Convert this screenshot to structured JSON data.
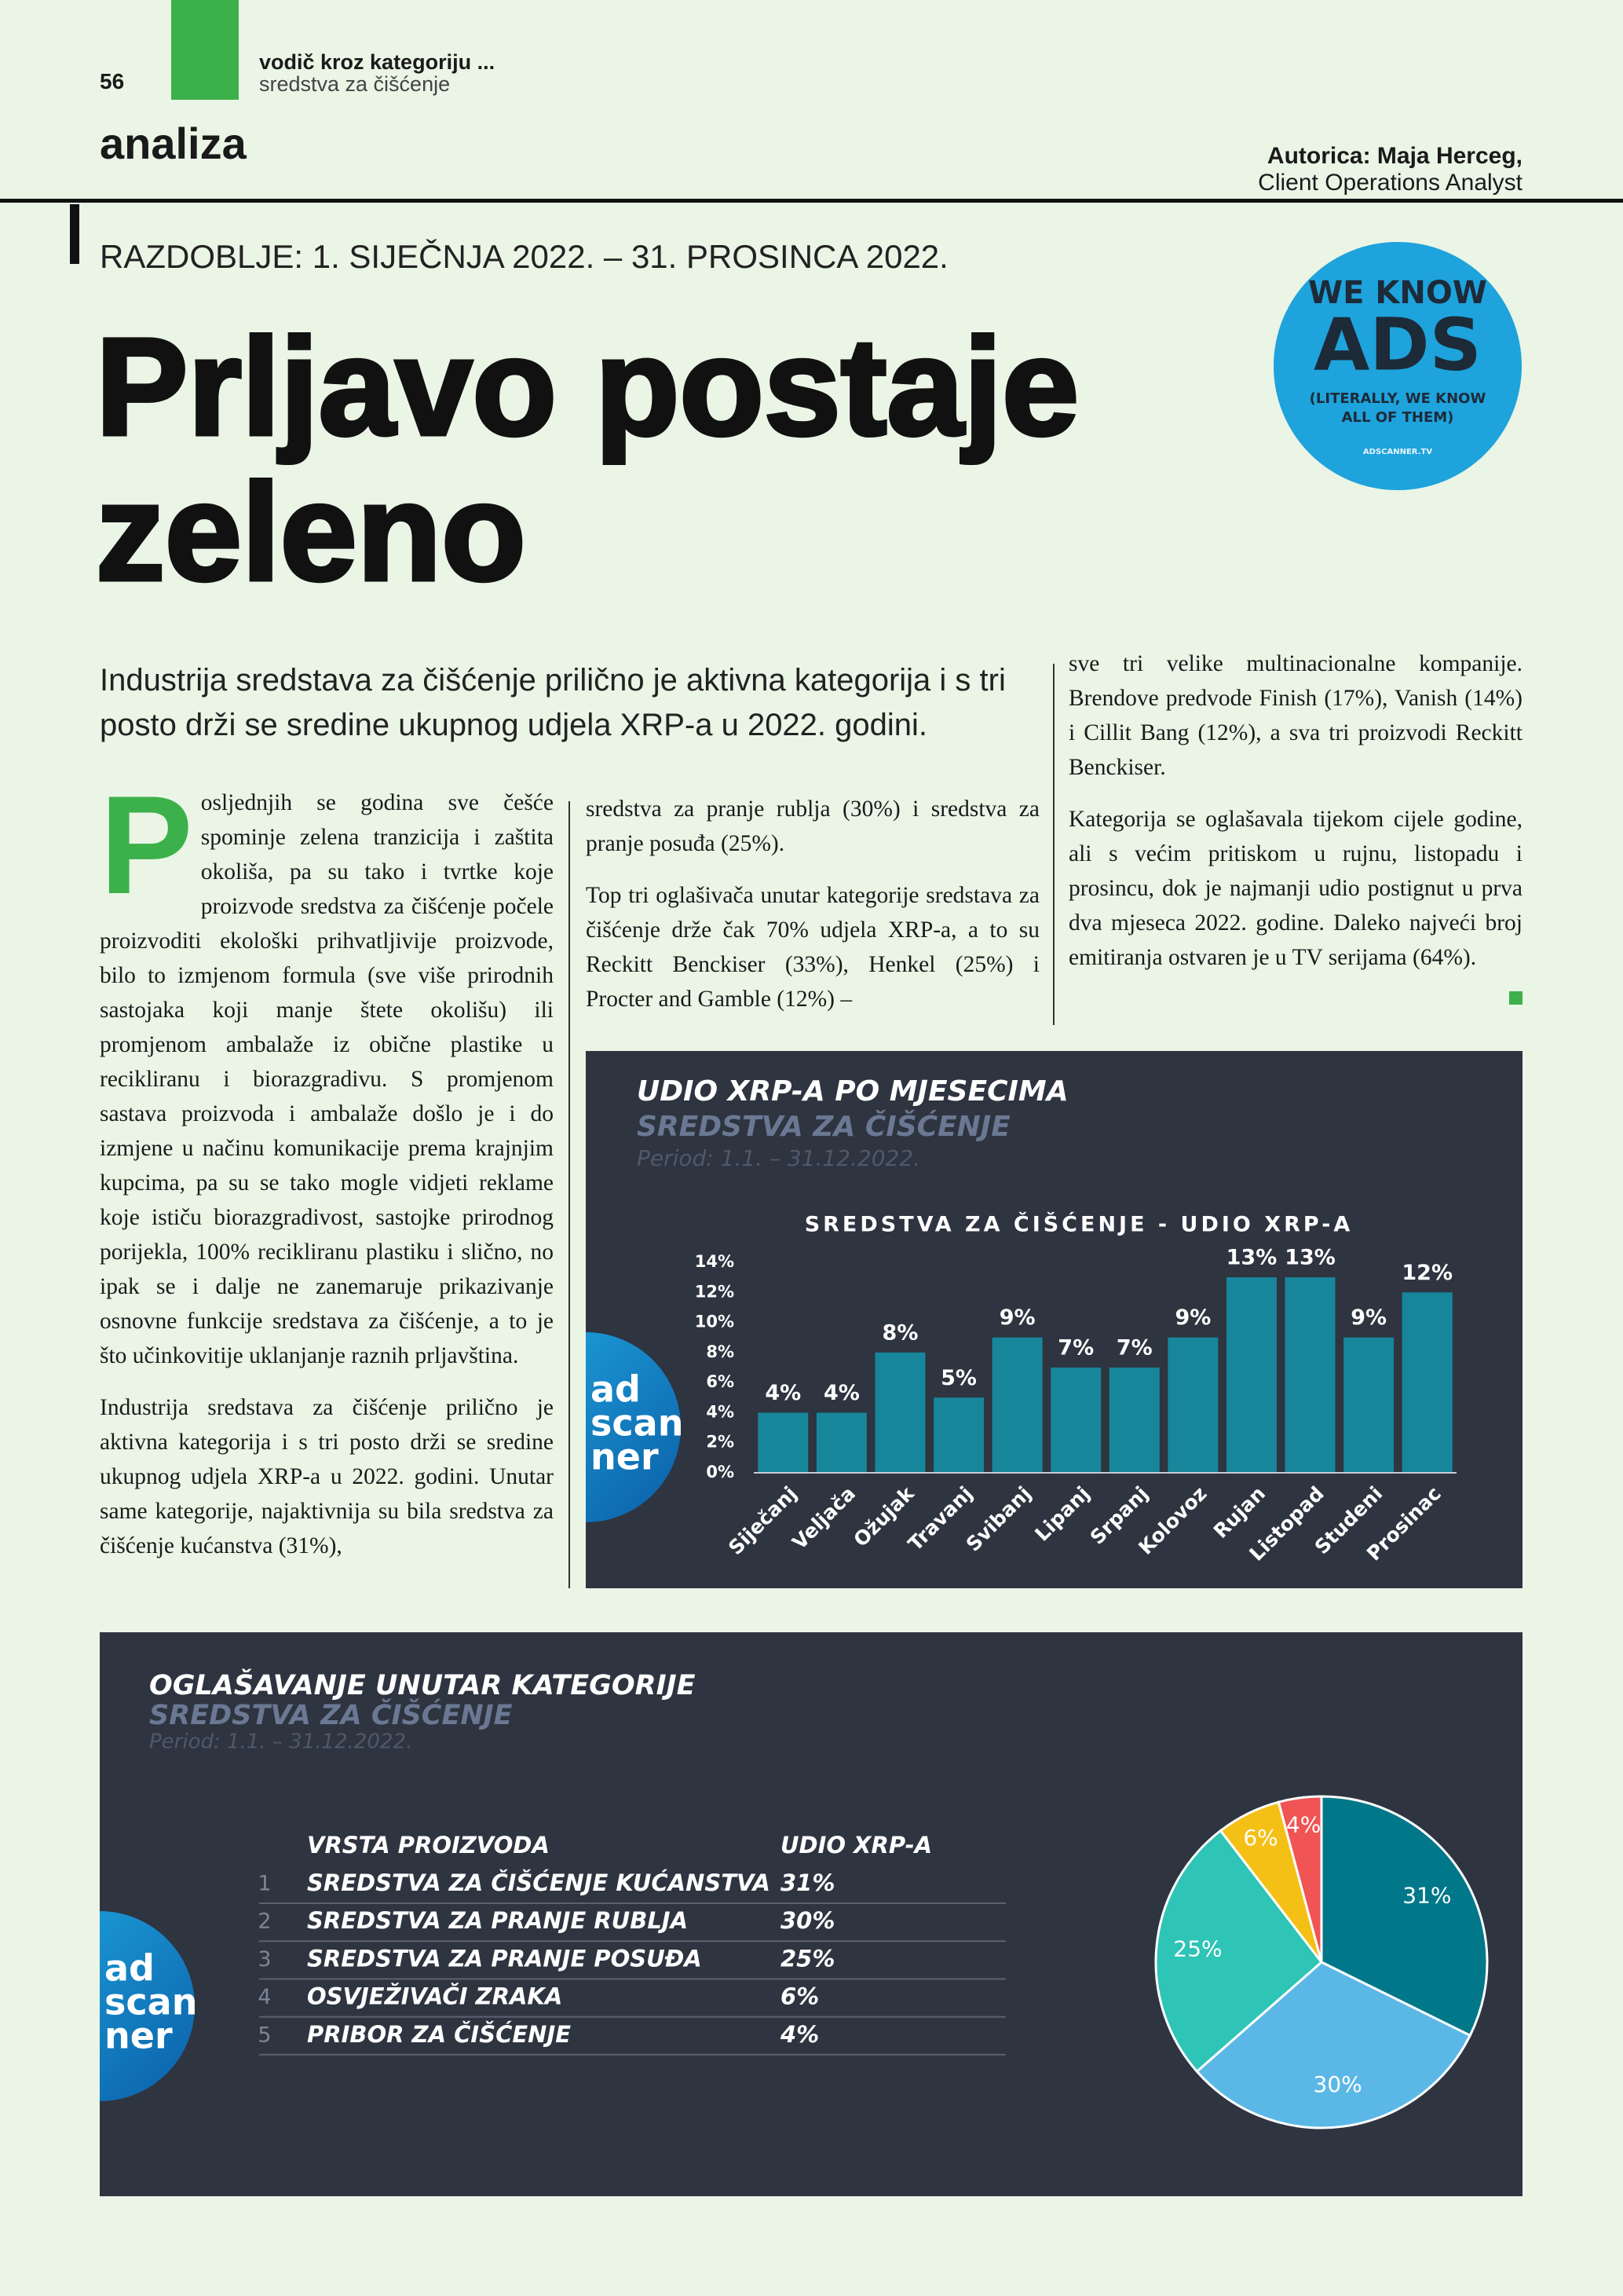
{
  "header": {
    "page_number": "56",
    "section_top": "vodič kroz kategoriju ...",
    "section_sub": "sredstva za čišćenje",
    "section": "analiza",
    "author": "Autorica: Maja Herceg,",
    "author_role": "Client Operations Analyst"
  },
  "article": {
    "period": "RAZDOBLJE: 1. SIJEČNJA 2022. – 31. PROSINCA 2022.",
    "title_lines": [
      "Prljavo postaje",
      "zeleno"
    ],
    "lead": "Industrija sredstava za čišćenje prilično je aktivna kategorija i s tri posto drži se sredine ukupnog udjela XRP-a u 2022. godini.",
    "drop_cap": "P",
    "columns": [
      [
        "osljednjih se godina sve češće spominje zelena tranzicija i zaštita okoliša, pa su tako i tvrtke koje proizvode sredstva za čišćenje počele proizvoditi ekološki prihvatljivije proizvode, bilo to izmjenom formula (sve više prirodnih sastojaka koji manje štete okolišu) ili promjenom ambalaže iz obične plastike u recikliranu i biorazgradivu. S promjenom sastava proizvoda i ambalaže došlo je i do izmjene u načinu komunikacije prema krajnjim kupcima, pa su se tako mogle vidjeti reklame koje ističu biorazgradivost, sastojke prirodnog porijekla, 100% recikliranu plastiku i slično, no ipak se i dalje ne zanemaruje prikazivanje osnovne funkcije sredstava za čišćenje, a to je što učinkovitije uklanjanje raznih prljavština.",
        "Industrija sredstava za čišćenje prilično je aktivna kategorija i s tri posto drži se sredine ukupnog udjela XRP-a u 2022. godini. Unutar same kategorije, najaktivnija su bila sredstva za čišćenje kućanstva (31%),"
      ],
      [
        "sredstva za pranje rublja (30%) i sredstva za pranje posuđa (25%).",
        "Top tri oglašivača unutar kategorije sredstava za čišćenje drže čak 70% udjela XRP-a, a to su Reckitt Benckiser (33%), Henkel (25%) i Procter and Gamble (12%) –"
      ],
      [
        "sve tri velike multinacionalne kompanije. Brendove predvode Finish (17%), Vanish (14%) i Cillit Bang (12%), a sva tri proizvodi Reckitt Benckiser.",
        "Kategorija se oglašavala tijekom cijele godine, ali s većim pritiskom u rujnu, listopadu i prosincu, dok je najmanji udio postignut u prva dva mjeseca 2022. godine. Daleko najveći broj emitiranja ostvaren je u TV serijama (64%)."
      ]
    ]
  },
  "badge": {
    "line1": "WE KNOW",
    "line2": "ADS",
    "line3": "(LITERALLY, WE KNOW",
    "line4": "ALL OF THEM)",
    "url": "ADSCANNER.TV"
  },
  "adscanner_logo": [
    "ad",
    "scan",
    "ner"
  ],
  "chart_data": [
    {
      "type": "bar",
      "title": "UDIO XRP-A PO MJESECIMA",
      "subtitle": "SREDSTVA ZA ČIŠĆENJE",
      "note": "Period: 1.1. – 31.12.2022.",
      "chart_title": "SREDSTVA ZA ČIŠĆENJE - UDIO XRP-A",
      "categories": [
        "Siječanj",
        "Veljača",
        "Ožujak",
        "Travanj",
        "Svibanj",
        "Lipanj",
        "Srpanj",
        "Kolovoz",
        "Rujan",
        "Listopad",
        "Studeni",
        "Prosinac"
      ],
      "values": [
        4,
        4,
        8,
        5,
        9,
        7,
        7,
        9,
        13,
        13,
        9,
        12
      ],
      "value_labels": [
        "4%",
        "4%",
        "8%",
        "5%",
        "9%",
        "7%",
        "7%",
        "9%",
        "13%",
        "13%",
        "9%",
        "12%"
      ],
      "color": "#17869b",
      "ylim": [
        0,
        14
      ],
      "yticks": [
        {
          "value": 0,
          "label": "0%"
        },
        {
          "value": 2,
          "label": "2%"
        },
        {
          "value": 4,
          "label": "4%"
        },
        {
          "value": 6,
          "label": "6%"
        },
        {
          "value": 8,
          "label": "8%"
        },
        {
          "value": 10,
          "label": "10%"
        },
        {
          "value": 12,
          "label": "12%"
        },
        {
          "value": 14,
          "label": "14%"
        }
      ]
    },
    {
      "type": "pie",
      "title": "OGLAŠAVANJE UNUTAR KATEGORIJE",
      "subtitle": "SREDSTVA ZA ČIŠĆENJE",
      "note": "Period: 1.1. – 31.12.2022.",
      "table_headers": [
        "VRSTA PROIZVODA",
        "UDIO XRP-A"
      ],
      "row_numbers": [
        1,
        2,
        3,
        4,
        5
      ],
      "categories": [
        "SREDSTVA ZA ČIŠĆENJE KUĆANSTVA",
        "SREDSTVA ZA PRANJE RUBLJA",
        "SREDSTVA ZA PRANJE POSUĐA",
        "OSVJEŽIVAČI ZRAKA",
        "PRIBOR ZA ČIŠĆENJE"
      ],
      "values": [
        31,
        30,
        25,
        6,
        4
      ],
      "value_labels": [
        "31%",
        "30%",
        "25%",
        "6%",
        "4%"
      ],
      "colors": [
        "#00788a",
        "#5bb8e6",
        "#2ec4b6",
        "#f5c016",
        "#f05454"
      ]
    }
  ]
}
